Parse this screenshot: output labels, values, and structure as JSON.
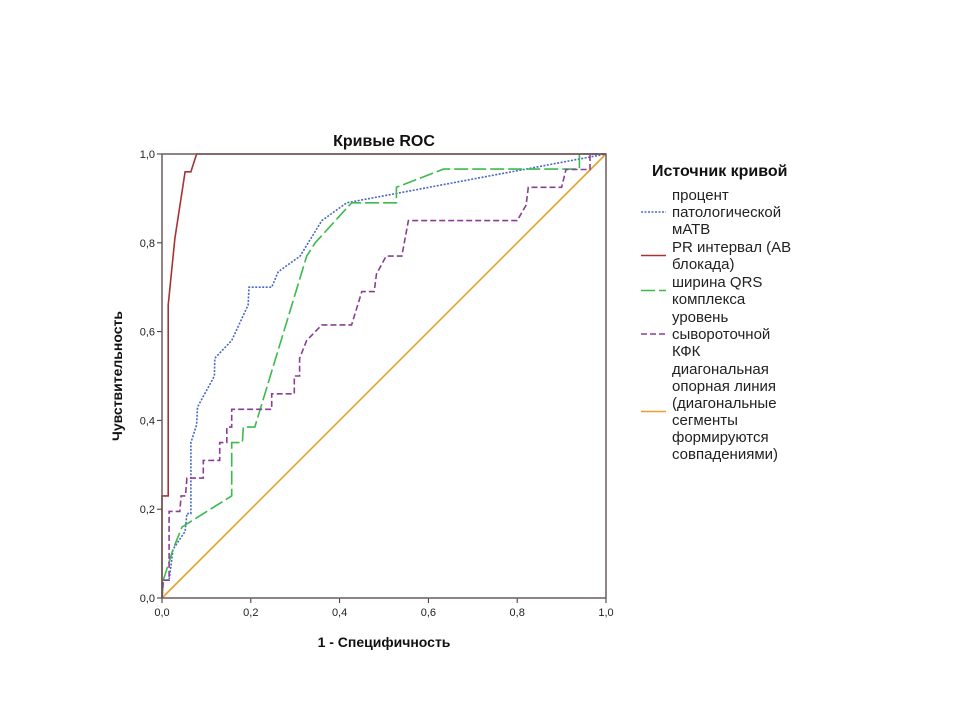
{
  "chart_data": {
    "type": "line",
    "title": "Кривые ROC",
    "xlabel": "1 - Специфичность",
    "ylabel": "Чувствительность",
    "xlim": [
      0,
      1
    ],
    "ylim": [
      0,
      1
    ],
    "xticks": [
      "0,0",
      "0,2",
      "0,4",
      "0,6",
      "0,8",
      "1,0"
    ],
    "yticks": [
      "0,0",
      "0,2",
      "0,4",
      "0,6",
      "0,8",
      "1,0"
    ],
    "grid": false,
    "legend": {
      "title": "Источник кривой",
      "placement": "right"
    },
    "series": [
      {
        "name": "процент патологической мАТВ",
        "lines": [
          "процент",
          "патологической",
          "мАТВ"
        ],
        "color": "#4a68c4",
        "dash": "dotted",
        "points": [
          [
            0,
            0
          ],
          [
            0.003,
            0.04
          ],
          [
            0.016,
            0.04
          ],
          [
            0.025,
            0.11
          ],
          [
            0.052,
            0.15
          ],
          [
            0.056,
            0.19
          ],
          [
            0.065,
            0.19
          ],
          [
            0.065,
            0.35
          ],
          [
            0.078,
            0.39
          ],
          [
            0.08,
            0.43
          ],
          [
            0.118,
            0.5
          ],
          [
            0.119,
            0.54
          ],
          [
            0.157,
            0.58
          ],
          [
            0.194,
            0.66
          ],
          [
            0.196,
            0.7
          ],
          [
            0.247,
            0.7
          ],
          [
            0.262,
            0.735
          ],
          [
            0.311,
            0.77
          ],
          [
            0.36,
            0.85
          ],
          [
            0.416,
            0.89
          ],
          [
            1,
            1
          ]
        ]
      },
      {
        "name": "PR интервал (АВ блокада)",
        "lines": [
          "PR интервал (АВ",
          "блокада)"
        ],
        "color": "#a83232",
        "dash": "solid",
        "points": [
          [
            0,
            0
          ],
          [
            0,
            0.23
          ],
          [
            0.014,
            0.23
          ],
          [
            0.014,
            0.66
          ],
          [
            0.029,
            0.81
          ],
          [
            0.052,
            0.96
          ],
          [
            0.065,
            0.96
          ],
          [
            0.078,
            1
          ],
          [
            1,
            1
          ]
        ]
      },
      {
        "name": "ширина QRS комплекса",
        "lines": [
          "ширина QRS",
          "комплекса"
        ],
        "color": "#3cba4c",
        "dash": "longdash",
        "points": [
          [
            0,
            0
          ],
          [
            0.003,
            0.04
          ],
          [
            0.025,
            0.11
          ],
          [
            0.045,
            0.16
          ],
          [
            0.157,
            0.23
          ],
          [
            0.157,
            0.35
          ],
          [
            0.181,
            0.35
          ],
          [
            0.183,
            0.385
          ],
          [
            0.209,
            0.385
          ],
          [
            0.326,
            0.77
          ],
          [
            0.345,
            0.8
          ],
          [
            0.427,
            0.89
          ],
          [
            0.528,
            0.89
          ],
          [
            0.528,
            0.925
          ],
          [
            0.634,
            0.966
          ],
          [
            0.94,
            0.966
          ],
          [
            0.94,
            1
          ],
          [
            1,
            1
          ]
        ]
      },
      {
        "name": "уровень сывороточной КФК",
        "lines": [
          "уровень",
          "сывороточной",
          "КФК"
        ],
        "color": "#8a3e96",
        "dash": "dashed",
        "points": [
          [
            0,
            0
          ],
          [
            0.003,
            0.04
          ],
          [
            0.016,
            0.04
          ],
          [
            0.016,
            0.195
          ],
          [
            0.04,
            0.195
          ],
          [
            0.043,
            0.23
          ],
          [
            0.053,
            0.23
          ],
          [
            0.056,
            0.27
          ],
          [
            0.093,
            0.27
          ],
          [
            0.093,
            0.31
          ],
          [
            0.13,
            0.31
          ],
          [
            0.13,
            0.35
          ],
          [
            0.146,
            0.35
          ],
          [
            0.146,
            0.385
          ],
          [
            0.157,
            0.385
          ],
          [
            0.157,
            0.425
          ],
          [
            0.247,
            0.425
          ],
          [
            0.247,
            0.46
          ],
          [
            0.298,
            0.46
          ],
          [
            0.298,
            0.5
          ],
          [
            0.31,
            0.5
          ],
          [
            0.31,
            0.54
          ],
          [
            0.326,
            0.58
          ],
          [
            0.36,
            0.615
          ],
          [
            0.427,
            0.615
          ],
          [
            0.45,
            0.69
          ],
          [
            0.478,
            0.69
          ],
          [
            0.483,
            0.73
          ],
          [
            0.505,
            0.77
          ],
          [
            0.54,
            0.77
          ],
          [
            0.555,
            0.85
          ],
          [
            0.8,
            0.85
          ],
          [
            0.82,
            0.885
          ],
          [
            0.825,
            0.925
          ],
          [
            0.9,
            0.925
          ],
          [
            0.91,
            0.965
          ],
          [
            0.964,
            0.965
          ],
          [
            0.964,
            1
          ],
          [
            1,
            1
          ]
        ]
      },
      {
        "name": "диагональная опорная линия (диагональные сегменты формируются совпадениями)",
        "lines": [
          "диагональная",
          "опорная линия",
          "(диагональные",
          "сегменты",
          "формируются",
          "совпадениями)"
        ],
        "color": "#eaa030",
        "dash": "solid",
        "points": [
          [
            0,
            0
          ],
          [
            1,
            1
          ]
        ]
      }
    ]
  }
}
